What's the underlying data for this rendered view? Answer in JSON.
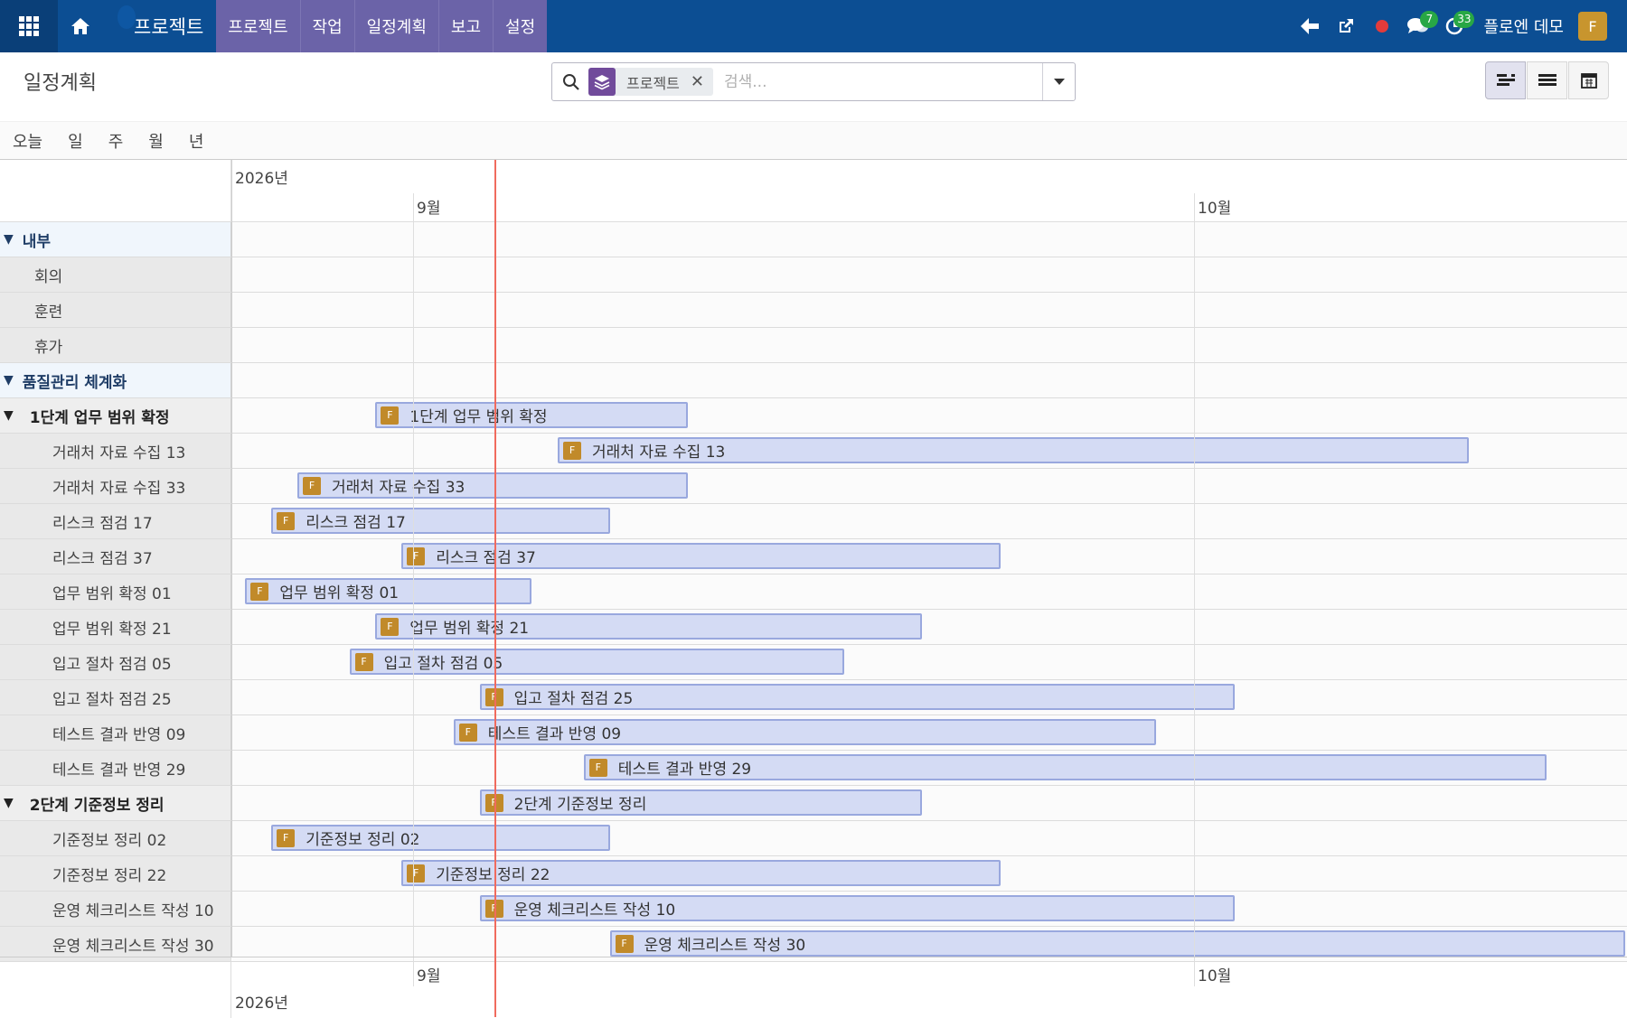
{
  "navbar": {
    "brand": "프로젝트",
    "menu": [
      {
        "label": "프로젝트"
      },
      {
        "label": "작업"
      },
      {
        "label": "일정계획"
      },
      {
        "label": "보고"
      },
      {
        "label": "설정"
      }
    ],
    "messages_count": "7",
    "activities_count": "33",
    "user_name": "플로엔 데모",
    "user_initial": "F",
    "icons": [
      "apps-icon",
      "home-icon",
      "back-arrow-icon",
      "external-link-icon",
      "recording-dot-icon",
      "chat-icon",
      "clock-icon"
    ]
  },
  "control": {
    "title": "일정계획",
    "facet_label": "프로젝트",
    "search_placeholder": "검색...",
    "scales": [
      {
        "label": "오늘"
      },
      {
        "label": "일"
      },
      {
        "label": "주"
      },
      {
        "label": "월"
      },
      {
        "label": "년"
      }
    ]
  },
  "gantt": {
    "year": "2026년",
    "months": [
      "9월",
      "10월"
    ],
    "rows": [
      {
        "kind": "group",
        "label": "내부"
      },
      {
        "kind": "leaf",
        "label": "회의"
      },
      {
        "kind": "leaf",
        "label": "훈련"
      },
      {
        "kind": "leaf",
        "label": "휴가"
      },
      {
        "kind": "group",
        "label": "품질관리 체계화"
      },
      {
        "kind": "sub",
        "label": "1단계 업무 범위 확정",
        "bar": {
          "text": "1단계 업무 범위 확정",
          "start": 5.5,
          "end": 17.5
        }
      },
      {
        "kind": "leaf",
        "label": "거래처 자료 수집 13",
        "bar": {
          "text": "거래처 자료 수집 13",
          "start": 12.5,
          "end": 47.5
        }
      },
      {
        "kind": "leaf",
        "label": "거래처 자료 수집 33",
        "bar": {
          "text": "거래처 자료 수집 33",
          "start": 2.5,
          "end": 17.5
        }
      },
      {
        "kind": "leaf",
        "label": "리스크 점검 17",
        "bar": {
          "text": "리스크 점검 17",
          "start": 1.5,
          "end": 14.5
        }
      },
      {
        "kind": "leaf",
        "label": "리스크 점검 37",
        "bar": {
          "text": "리스크 점검 37",
          "start": 6.5,
          "end": 29.5
        }
      },
      {
        "kind": "leaf",
        "label": "업무 범위 확정 01",
        "bar": {
          "text": "업무 범위 확정 01",
          "start": 0.5,
          "end": 11.5
        }
      },
      {
        "kind": "leaf",
        "label": "업무 범위 확정 21",
        "bar": {
          "text": "업무 범위 확정 21",
          "start": 5.5,
          "end": 26.5
        }
      },
      {
        "kind": "leaf",
        "label": "입고 절차 점검 05",
        "bar": {
          "text": "입고 절차 점검 05",
          "start": 4.5,
          "end": 23.5
        }
      },
      {
        "kind": "leaf",
        "label": "입고 절차 점검 25",
        "bar": {
          "text": "입고 절차 점검 25",
          "start": 9.5,
          "end": 38.5
        }
      },
      {
        "kind": "leaf",
        "label": "테스트 결과 반영 09",
        "bar": {
          "text": "테스트 결과 반영 09",
          "start": 8.5,
          "end": 35.5
        }
      },
      {
        "kind": "leaf",
        "label": "테스트 결과 반영 29",
        "bar": {
          "text": "테스트 결과 반영 29",
          "start": 13.5,
          "end": 50.5
        }
      },
      {
        "kind": "sub",
        "label": "2단계 기준정보 정리",
        "bar": {
          "text": "2단계 기준정보 정리",
          "start": 9.5,
          "end": 26.5
        }
      },
      {
        "kind": "leaf",
        "label": "기준정보 정리 02",
        "bar": {
          "text": "기준정보 정리 02",
          "start": 1.5,
          "end": 14.5
        }
      },
      {
        "kind": "leaf",
        "label": "기준정보 정리 22",
        "bar": {
          "text": "기준정보 정리 22",
          "start": 6.5,
          "end": 29.5
        }
      },
      {
        "kind": "leaf",
        "label": "운영 체크리스트 작성 10",
        "bar": {
          "text": "운영 체크리스트 작성 10",
          "start": 9.5,
          "end": 38.5
        }
      },
      {
        "kind": "leaf",
        "label": "운영 체크리스트 작성 30",
        "bar": {
          "text": "운영 체크리스트 작성 30",
          "start": 14.5,
          "end": 53.5
        }
      }
    ]
  },
  "colors": {
    "navbar": "#0c4e93",
    "menu_bg": "#6b63a8",
    "pill_bg": "#d4dbf4",
    "pill_border": "#99a8de",
    "today_line": "#f06b5e",
    "avatar": "#c8952e"
  }
}
